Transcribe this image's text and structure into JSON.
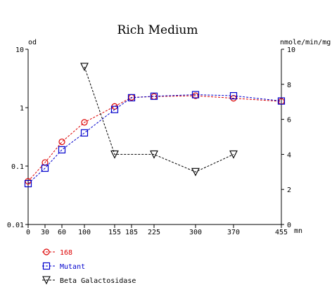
{
  "chart_data": {
    "type": "line",
    "title": "Rich Medium",
    "ylabel": "od",
    "y2label": "nmole/min/mg",
    "xunit": "mn",
    "x": [
      0,
      30,
      60,
      100,
      155,
      185,
      225,
      300,
      370,
      455
    ],
    "x_ticks": [
      "0",
      "30",
      "60",
      "100",
      "155",
      "185",
      "225",
      "300",
      "370",
      "455"
    ],
    "y_scale": "log",
    "ylim": [
      0.01,
      10
    ],
    "y_ticks": [
      "0.01",
      "0.1",
      "1",
      "10"
    ],
    "y2lim": [
      0,
      10
    ],
    "y2_ticks": [
      "0",
      "2",
      "4",
      "6",
      "8",
      "10"
    ],
    "series": [
      {
        "name": "168",
        "axis": "left",
        "color": "#dd0000",
        "marker": "circle",
        "x": [
          0,
          30,
          60,
          100,
          155,
          185,
          225,
          300,
          370,
          455
        ],
        "values": [
          0.055,
          0.115,
          0.26,
          0.56,
          1.05,
          1.5,
          1.55,
          1.6,
          1.45,
          1.28
        ]
      },
      {
        "name": "Mutant",
        "axis": "left",
        "color": "#0000cc",
        "marker": "square",
        "x": [
          0,
          30,
          60,
          100,
          155,
          185,
          225,
          300,
          370,
          455
        ],
        "values": [
          0.05,
          0.092,
          0.19,
          0.37,
          0.93,
          1.48,
          1.57,
          1.67,
          1.6,
          1.3
        ]
      },
      {
        "name": "Beta Galactosidase",
        "axis": "right",
        "color": "#000000",
        "marker": "triangle-down",
        "x": [
          100,
          155,
          225,
          300,
          370
        ],
        "values": [
          9.0,
          4.0,
          4.0,
          3.0,
          4.0
        ]
      }
    ],
    "legend_position": "bottom-left",
    "grid": false
  }
}
